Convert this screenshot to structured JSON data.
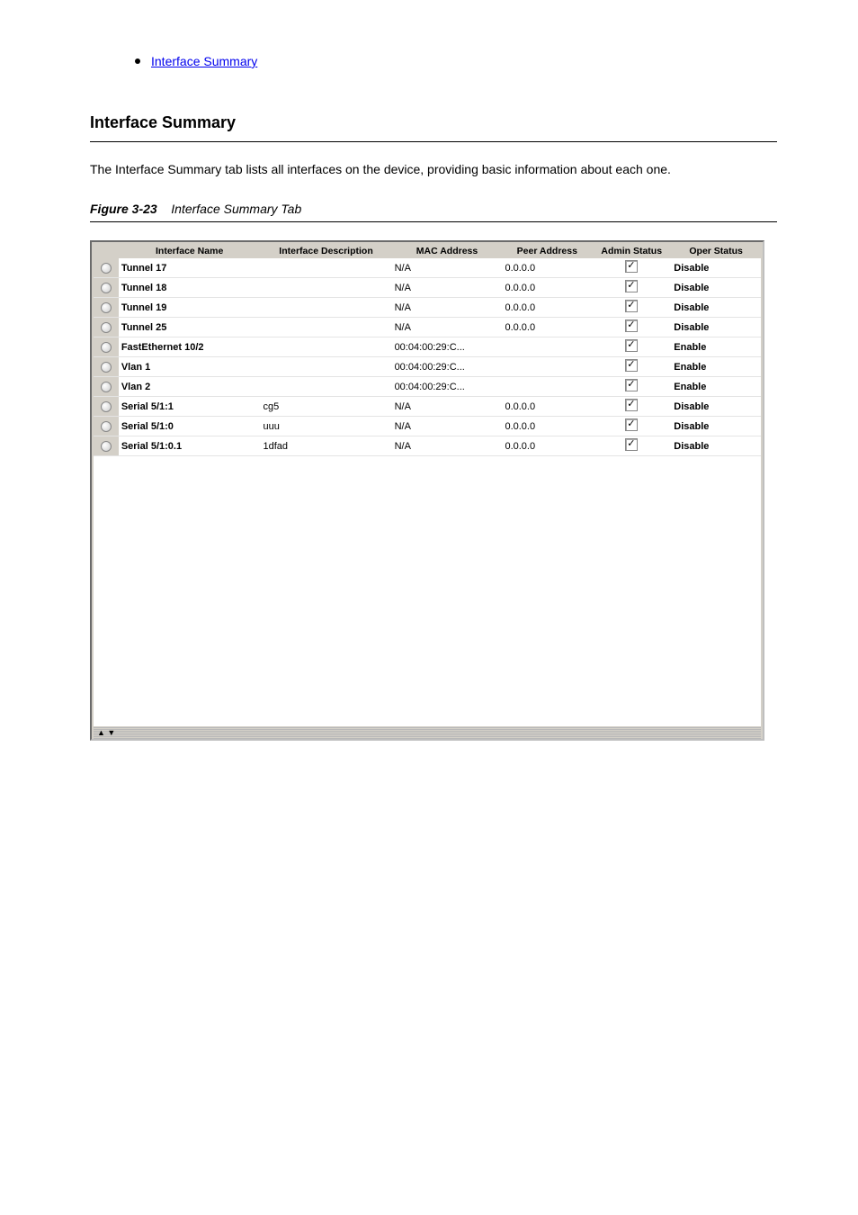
{
  "link": {
    "text": "Interface Summary"
  },
  "section": {
    "title": "Interface Summary"
  },
  "intro": {
    "text": "The Interface Summary tab lists all interfaces on the device, providing basic information about\neach one."
  },
  "figure": {
    "label": "Figure 3-23",
    "caption": "Interface Summary Tab"
  },
  "table": {
    "headers": {
      "name": "Interface Name",
      "desc": "Interface Description",
      "mac": "MAC Address",
      "peer": "Peer Address",
      "admin": "Admin Status",
      "oper": "Oper Status"
    },
    "rows": [
      {
        "name": "Tunnel 17",
        "desc": "",
        "mac": "N/A",
        "peer": "0.0.0.0",
        "admin_checked": true,
        "oper": "Disable"
      },
      {
        "name": "Tunnel 18",
        "desc": "",
        "mac": "N/A",
        "peer": "0.0.0.0",
        "admin_checked": true,
        "oper": "Disable"
      },
      {
        "name": "Tunnel 19",
        "desc": "",
        "mac": "N/A",
        "peer": "0.0.0.0",
        "admin_checked": true,
        "oper": "Disable"
      },
      {
        "name": "Tunnel 25",
        "desc": "",
        "mac": "N/A",
        "peer": "0.0.0.0",
        "admin_checked": true,
        "oper": "Disable"
      },
      {
        "name": "FastEthernet 10/2",
        "desc": "",
        "mac": "00:04:00:29:C...",
        "peer": "",
        "admin_checked": true,
        "oper": "Enable"
      },
      {
        "name": "Vlan 1",
        "desc": "",
        "mac": "00:04:00:29:C...",
        "peer": "",
        "admin_checked": true,
        "oper": "Enable"
      },
      {
        "name": "Vlan 2",
        "desc": "",
        "mac": "00:04:00:29:C...",
        "peer": "",
        "admin_checked": true,
        "oper": "Enable"
      },
      {
        "name": "Serial 5/1:1",
        "desc": "cg5",
        "mac": "N/A",
        "peer": "0.0.0.0",
        "admin_checked": true,
        "oper": "Disable"
      },
      {
        "name": "Serial 5/1:0",
        "desc": "uuu",
        "mac": "N/A",
        "peer": "0.0.0.0",
        "admin_checked": true,
        "oper": "Disable"
      },
      {
        "name": "Serial 5/1:0.1",
        "desc": "1dfad",
        "mac": "N/A",
        "peer": "0.0.0.0",
        "admin_checked": true,
        "oper": "Disable"
      }
    ]
  },
  "colors": {
    "link": "#0000ee",
    "panel_bg": "#d4d0c8",
    "text": "#000000"
  }
}
